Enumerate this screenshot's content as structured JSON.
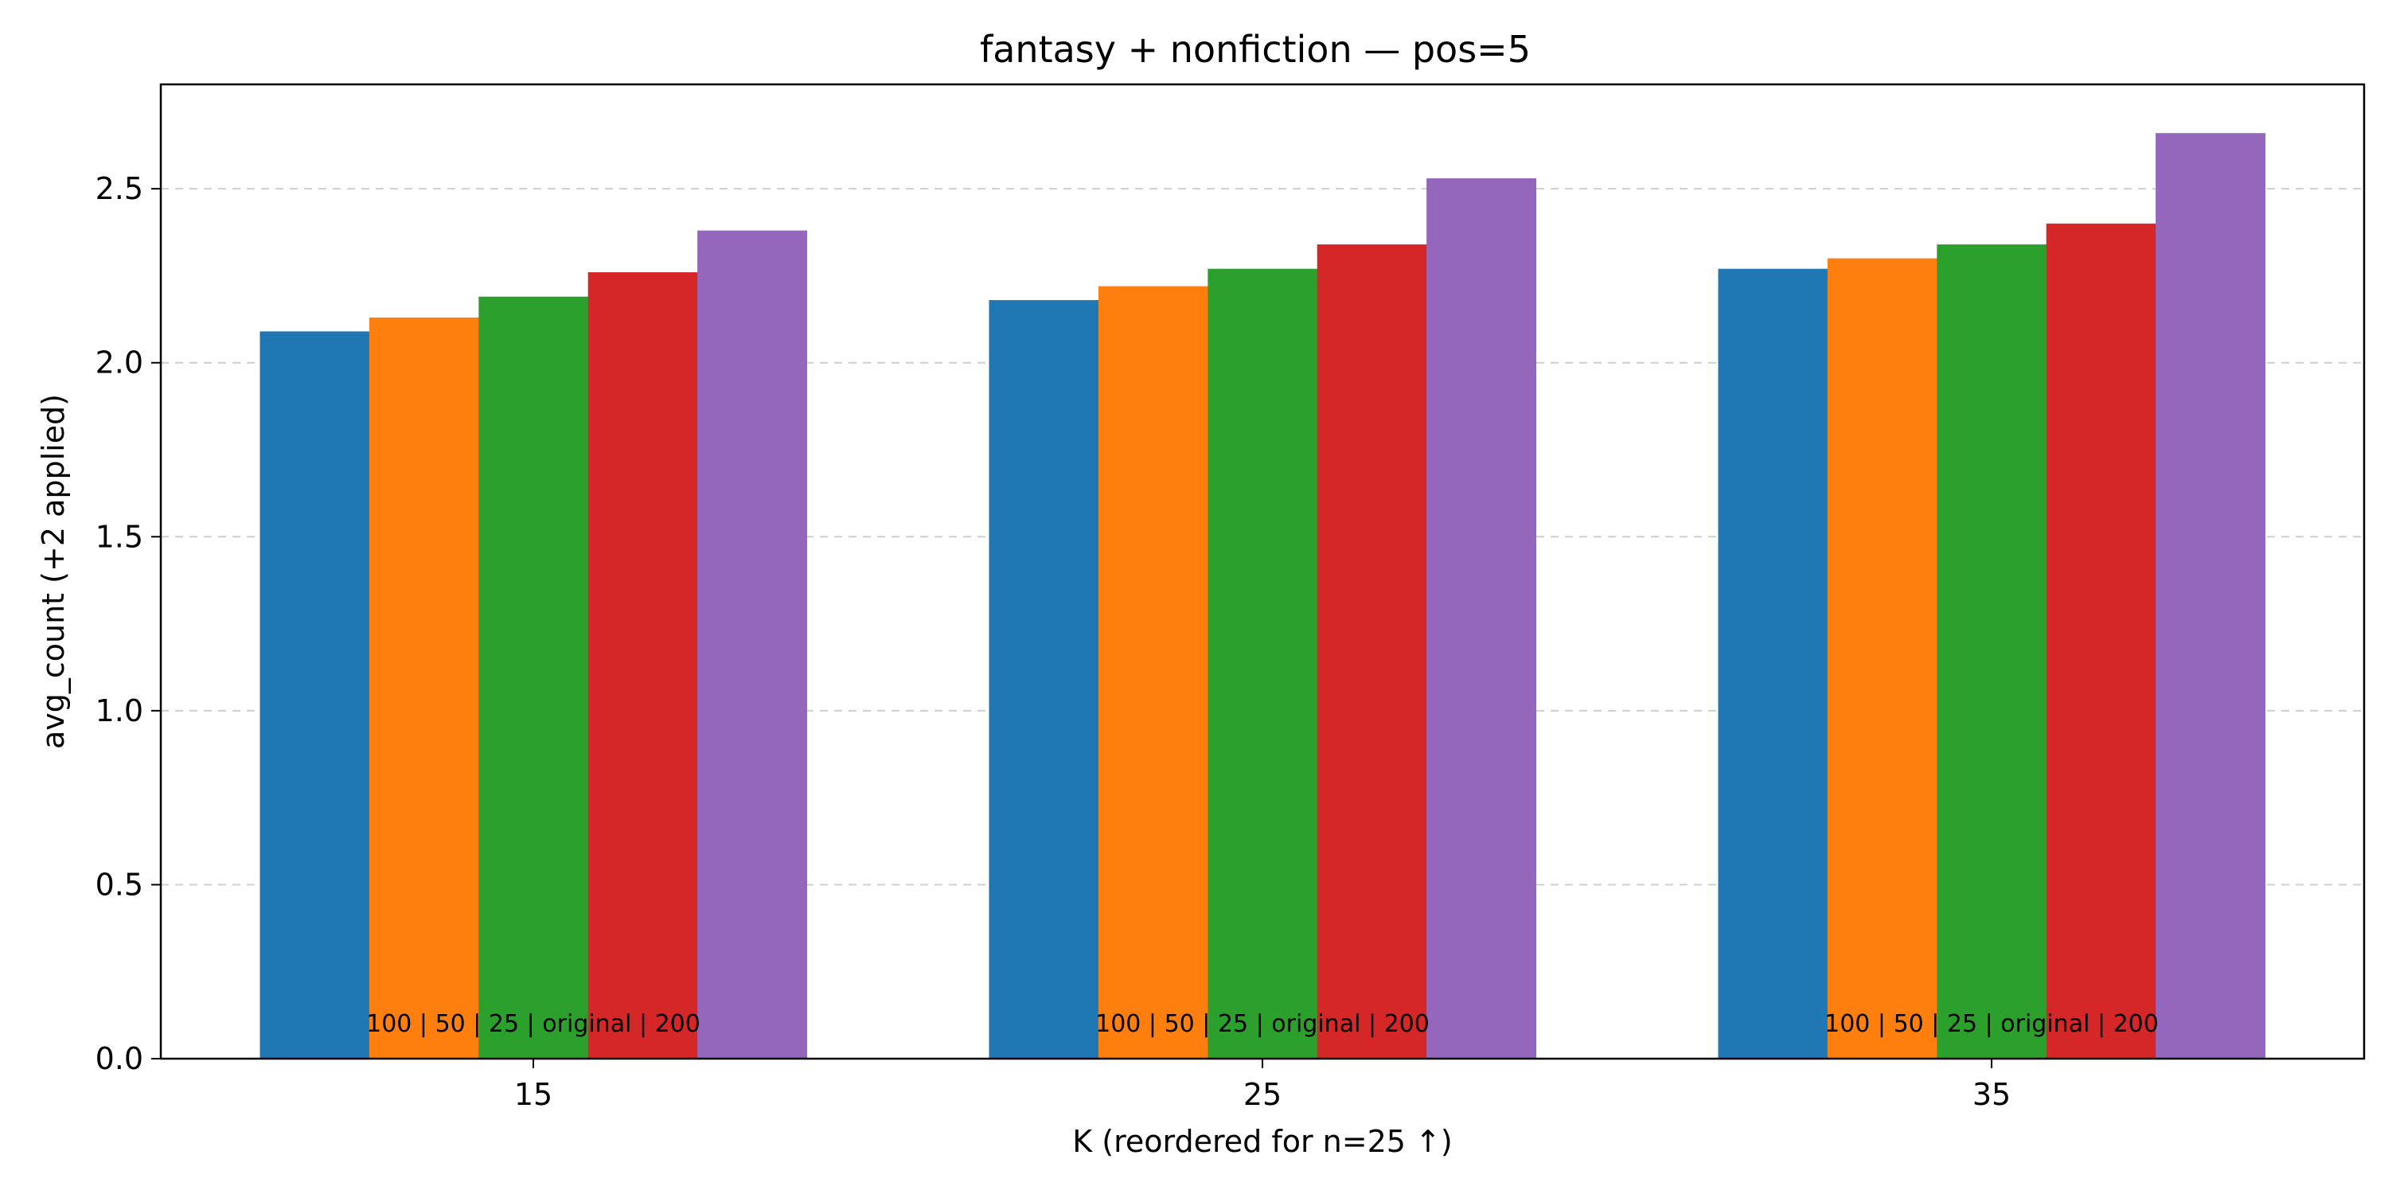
{
  "chart_data": {
    "type": "bar",
    "title": "fantasy + nonfiction — pos=5",
    "xlabel": "K (reordered for n=25 ↑)",
    "ylabel": "avg_count (+2 applied)",
    "categories": [
      "15",
      "25",
      "35"
    ],
    "ylim": [
      0,
      2.8
    ],
    "yticks": [
      "0.0",
      "0.5",
      "1.0",
      "1.5",
      "2.0",
      "2.5"
    ],
    "ytick_values": [
      0,
      0.5,
      1.0,
      1.5,
      2.0,
      2.5
    ],
    "grid": "horizontal dashed",
    "series": [
      {
        "color": "#1f77b4",
        "values": [
          2.09,
          2.18,
          2.27
        ]
      },
      {
        "color": "#ff7f0e",
        "values": [
          2.13,
          2.22,
          2.3
        ]
      },
      {
        "color": "#2ca02c",
        "values": [
          2.19,
          2.27,
          2.34
        ]
      },
      {
        "color": "#d62728",
        "values": [
          2.26,
          2.34,
          2.4
        ]
      },
      {
        "color": "#9467bd",
        "values": [
          2.38,
          2.53,
          2.66
        ]
      }
    ],
    "annotations": [
      "100 | 50 | 25 | original | 200",
      "100 | 50 | 25 | original | 200",
      "100 | 50 | 25 | original | 200"
    ]
  }
}
